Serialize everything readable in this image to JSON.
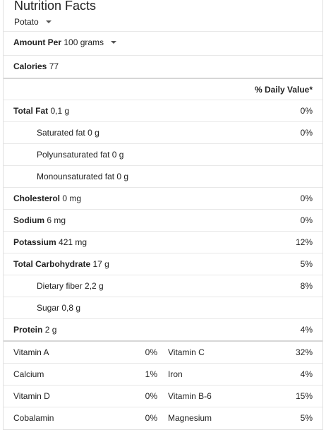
{
  "header": {
    "title": "Nutrition Facts",
    "food": "Potato"
  },
  "amount": {
    "label": "Amount Per",
    "value": "100 grams"
  },
  "calories": {
    "label": "Calories",
    "value": "77"
  },
  "daily_value_header": "% Daily Value*",
  "nutrients": [
    {
      "label": "Total Fat",
      "value": "0,1 g",
      "pct": "0%"
    },
    {
      "label": "Saturated fat",
      "value": "0 g",
      "pct": "0%"
    },
    {
      "label": "Polyunsaturated fat",
      "value": "0 g",
      "pct": ""
    },
    {
      "label": "Monounsaturated fat",
      "value": "0 g",
      "pct": ""
    },
    {
      "label": "Cholesterol",
      "value": "0 mg",
      "pct": "0%"
    },
    {
      "label": "Sodium",
      "value": "6 mg",
      "pct": "0%"
    },
    {
      "label": "Potassium",
      "value": "421 mg",
      "pct": "12%"
    },
    {
      "label": "Total Carbohydrate",
      "value": "17 g",
      "pct": "5%"
    },
    {
      "label": "Dietary fiber",
      "value": "2,2 g",
      "pct": "8%"
    },
    {
      "label": "Sugar",
      "value": "0,8 g",
      "pct": ""
    },
    {
      "label": "Protein",
      "value": "2 g",
      "pct": "4%"
    }
  ],
  "vitamins": [
    {
      "left_label": "Vitamin A",
      "left_pct": "0%",
      "right_label": "Vitamin C",
      "right_pct": "32%"
    },
    {
      "left_label": "Calcium",
      "left_pct": "1%",
      "right_label": "Iron",
      "right_pct": "4%"
    },
    {
      "left_label": "Vitamin D",
      "left_pct": "0%",
      "right_label": "Vitamin B-6",
      "right_pct": "15%"
    },
    {
      "left_label": "Cobalamin",
      "left_pct": "0%",
      "right_label": "Magnesium",
      "right_pct": "5%"
    }
  ],
  "icons": {
    "dropdown": "caret-down-icon"
  }
}
